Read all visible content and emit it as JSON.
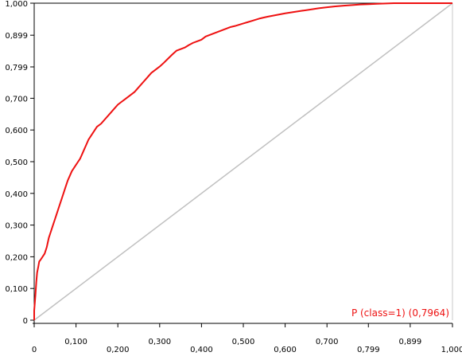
{
  "chart_data": {
    "type": "line",
    "title": "",
    "xlabel": "",
    "ylabel": "",
    "xlim": [
      0,
      1.0
    ],
    "ylim": [
      0,
      1.0
    ],
    "grid": false,
    "x_ticks": [
      "0",
      "0,100",
      "0,200",
      "0,300",
      "0,400",
      "0,500",
      "0,600",
      "0,700",
      "0,799",
      "0,899",
      "1,000"
    ],
    "y_ticks": [
      "0",
      "0,100",
      "0,200",
      "0,300",
      "0,400",
      "0,500",
      "0,600",
      "0,700",
      "0,799",
      "0,899",
      "1,000"
    ],
    "tick_values": [
      0,
      0.1,
      0.2,
      0.3,
      0.4,
      0.5,
      0.6,
      0.7,
      0.799,
      0.899,
      1.0
    ],
    "diagonal": {
      "x": [
        0,
        1.0
      ],
      "y": [
        0,
        1.0
      ],
      "color": "#c0c0c0"
    },
    "series": [
      {
        "name": "P (class=1) (0,7964)",
        "color": "#ee1111",
        "x": [
          0,
          0,
          0.003,
          0.005,
          0.007,
          0.01,
          0.012,
          0.015,
          0.02,
          0.025,
          0.03,
          0.035,
          0.04,
          0.045,
          0.05,
          0.055,
          0.06,
          0.065,
          0.07,
          0.075,
          0.08,
          0.085,
          0.09,
          0.095,
          0.1,
          0.105,
          0.11,
          0.115,
          0.12,
          0.125,
          0.13,
          0.14,
          0.15,
          0.16,
          0.17,
          0.18,
          0.19,
          0.2,
          0.21,
          0.22,
          0.23,
          0.24,
          0.25,
          0.26,
          0.27,
          0.28,
          0.29,
          0.3,
          0.31,
          0.32,
          0.33,
          0.34,
          0.35,
          0.36,
          0.37,
          0.38,
          0.39,
          0.4,
          0.405,
          0.41,
          0.42,
          0.43,
          0.44,
          0.45,
          0.46,
          0.47,
          0.48,
          0.49,
          0.5,
          0.51,
          0.52,
          0.53,
          0.54,
          0.55,
          0.56,
          0.58,
          0.6,
          0.62,
          0.64,
          0.66,
          0.68,
          0.7,
          0.72,
          0.74,
          0.76,
          0.78,
          0.8,
          0.82,
          0.84,
          0.86,
          0.88,
          0.9,
          0.92,
          0.94,
          0.96,
          0.98,
          1.0
        ],
        "y": [
          0,
          0.03,
          0.08,
          0.12,
          0.15,
          0.17,
          0.185,
          0.19,
          0.2,
          0.21,
          0.23,
          0.26,
          0.28,
          0.3,
          0.32,
          0.34,
          0.36,
          0.38,
          0.4,
          0.42,
          0.44,
          0.455,
          0.47,
          0.48,
          0.49,
          0.5,
          0.51,
          0.525,
          0.54,
          0.555,
          0.57,
          0.59,
          0.61,
          0.62,
          0.635,
          0.65,
          0.665,
          0.68,
          0.69,
          0.7,
          0.71,
          0.72,
          0.735,
          0.75,
          0.765,
          0.78,
          0.79,
          0.8,
          0.812,
          0.825,
          0.838,
          0.85,
          0.855,
          0.86,
          0.868,
          0.875,
          0.88,
          0.885,
          0.89,
          0.895,
          0.9,
          0.905,
          0.91,
          0.915,
          0.92,
          0.925,
          0.928,
          0.932,
          0.936,
          0.94,
          0.944,
          0.948,
          0.952,
          0.955,
          0.958,
          0.963,
          0.968,
          0.972,
          0.976,
          0.98,
          0.984,
          0.987,
          0.99,
          0.992,
          0.994,
          0.996,
          0.997,
          0.998,
          0.999,
          1.0,
          1.0,
          1.0,
          1.0,
          1.0,
          1.0,
          1.0,
          1.0
        ]
      }
    ]
  }
}
